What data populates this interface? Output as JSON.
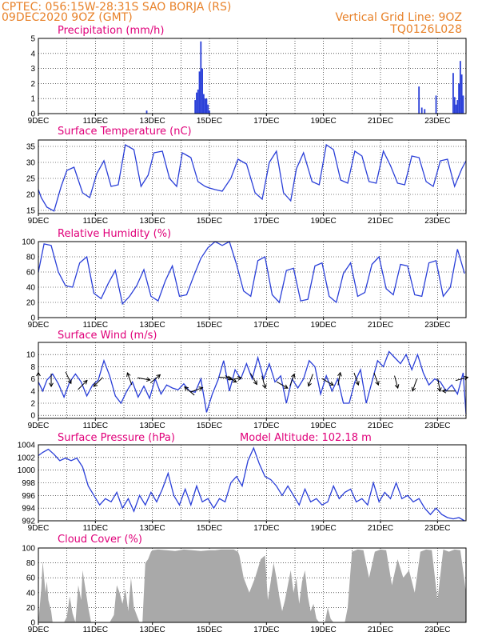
{
  "header": {
    "line1": "CPTEC:   056:15W-28:31S   SAO BORJA (RS)",
    "line2": "09DEC2020 9OZ (GMT)",
    "right1": "Vertical Grid Line: 9OZ",
    "right2": "TQ0126L028",
    "altitude": "Model Altitude: 102.18 m"
  },
  "colors": {
    "header": "#e8822a",
    "panel_title": "#e0007a",
    "series": "#2a3fd8",
    "cloud": "#a9a9a9"
  },
  "x_axis": {
    "start_day": 9,
    "end_day": 24,
    "ticks": [
      {
        "day": 9,
        "label": "9DEC"
      },
      {
        "day": 11,
        "label": "11DEC"
      },
      {
        "day": 13,
        "label": "13DEC"
      },
      {
        "day": 15,
        "label": "15DEC"
      },
      {
        "day": 17,
        "label": "17DEC"
      },
      {
        "day": 19,
        "label": "19DEC"
      },
      {
        "day": 21,
        "label": "21DEC"
      },
      {
        "day": 23,
        "label": "23DEC"
      }
    ]
  },
  "chart_data": [
    {
      "key": "precip",
      "type": "bar",
      "title": "Precipitation (mm/h)",
      "ylim": [
        0,
        5
      ],
      "yticks": [
        0,
        1,
        2,
        3,
        4,
        5
      ],
      "grid": true,
      "x": [
        12.8,
        14.5,
        14.55,
        14.6,
        14.65,
        14.7,
        14.75,
        14.8,
        14.85,
        14.9,
        14.95,
        15.0,
        22.35,
        22.45,
        22.55,
        22.95,
        23.55,
        23.6,
        23.65,
        23.7,
        23.75,
        23.8,
        23.85,
        23.9
      ],
      "values": [
        0.2,
        0.9,
        1.4,
        1.6,
        2.8,
        4.8,
        3.0,
        1.3,
        1.0,
        1.0,
        0.6,
        0.2,
        1.8,
        0.4,
        0.3,
        1.2,
        2.7,
        1.1,
        0.6,
        0.9,
        2.0,
        3.5,
        2.6,
        1.2
      ]
    },
    {
      "key": "temp",
      "type": "line",
      "title": "Surface Temperature (nC)",
      "ylim": [
        14,
        37
      ],
      "yticks": [
        15,
        20,
        25,
        30,
        35
      ],
      "grid": true,
      "x": [
        9.0,
        9.1,
        9.3,
        9.55,
        9.8,
        10.0,
        10.25,
        10.55,
        10.8,
        11.05,
        11.3,
        11.55,
        11.8,
        12.05,
        12.35,
        12.6,
        12.85,
        13.05,
        13.35,
        13.6,
        13.85,
        14.05,
        14.35,
        14.6,
        14.85,
        15.0,
        15.2,
        15.45,
        15.75,
        16.0,
        16.3,
        16.6,
        16.85,
        17.1,
        17.35,
        17.6,
        17.85,
        18.05,
        18.3,
        18.6,
        18.85,
        19.1,
        19.35,
        19.6,
        19.85,
        20.1,
        20.35,
        20.6,
        20.85,
        21.1,
        21.35,
        21.6,
        21.85,
        22.1,
        22.35,
        22.6,
        22.85,
        23.1,
        23.35,
        23.6,
        23.85,
        24.0
      ],
      "values": [
        21.5,
        19,
        16,
        14.8,
        22.5,
        27.5,
        28.5,
        20.5,
        19,
        26.5,
        30.5,
        22.5,
        23,
        35.5,
        34,
        22.5,
        26,
        33,
        33.5,
        25,
        22.5,
        33,
        31.5,
        24,
        22.5,
        22,
        21.5,
        21,
        25,
        31,
        29.5,
        20.5,
        18.5,
        30,
        33.5,
        20.5,
        18,
        28,
        33,
        24,
        23,
        35.5,
        34,
        24.5,
        23.5,
        33.5,
        32,
        24,
        23.5,
        33.5,
        29,
        23.5,
        23,
        32,
        31.5,
        24,
        22.5,
        30.5,
        31,
        22.5,
        28,
        30.5
      ]
    },
    {
      "key": "rh",
      "type": "line",
      "title": "Relative Humidity (%)",
      "ylim": [
        0,
        100
      ],
      "yticks": [
        0,
        20,
        40,
        60,
        80,
        100
      ],
      "grid": true,
      "x": [
        9.0,
        9.2,
        9.45,
        9.7,
        9.95,
        10.2,
        10.45,
        10.7,
        10.95,
        11.2,
        11.45,
        11.7,
        11.95,
        12.2,
        12.45,
        12.7,
        12.95,
        13.2,
        13.45,
        13.7,
        13.95,
        14.2,
        14.45,
        14.7,
        14.95,
        15.2,
        15.45,
        15.7,
        15.95,
        16.2,
        16.45,
        16.7,
        16.95,
        17.2,
        17.45,
        17.7,
        17.95,
        18.2,
        18.45,
        18.7,
        18.95,
        19.2,
        19.45,
        19.7,
        19.95,
        20.2,
        20.45,
        20.7,
        20.95,
        21.2,
        21.45,
        21.7,
        21.95,
        22.2,
        22.45,
        22.7,
        22.95,
        23.2,
        23.45,
        23.7,
        23.95
      ],
      "values": [
        60,
        97,
        95,
        60,
        42,
        40,
        72,
        80,
        32,
        25,
        45,
        62,
        18,
        28,
        42,
        63,
        28,
        22,
        48,
        68,
        28,
        30,
        55,
        78,
        92,
        100,
        95,
        100,
        70,
        35,
        28,
        75,
        80,
        30,
        20,
        62,
        65,
        22,
        24,
        68,
        72,
        28,
        20,
        58,
        72,
        28,
        33,
        70,
        80,
        38,
        30,
        70,
        68,
        30,
        28,
        72,
        75,
        28,
        40,
        90,
        58
      ]
    },
    {
      "key": "wind",
      "type": "line",
      "title": "Surface Wind (m/s)",
      "ylim": [
        -0.5,
        12
      ],
      "yticks": [
        0,
        2,
        4,
        6,
        8,
        10
      ],
      "grid": true,
      "x": [
        9.0,
        9.15,
        9.3,
        9.5,
        9.7,
        9.9,
        10.1,
        10.3,
        10.5,
        10.7,
        10.9,
        11.1,
        11.3,
        11.5,
        11.7,
        11.9,
        12.1,
        12.3,
        12.5,
        12.7,
        12.9,
        13.1,
        13.3,
        13.5,
        13.7,
        13.9,
        14.1,
        14.3,
        14.5,
        14.7,
        14.9,
        15.1,
        15.3,
        15.5,
        15.7,
        15.9,
        16.1,
        16.3,
        16.5,
        16.7,
        16.9,
        17.1,
        17.3,
        17.5,
        17.7,
        17.9,
        18.1,
        18.3,
        18.5,
        18.7,
        18.9,
        19.1,
        19.3,
        19.5,
        19.7,
        19.9,
        20.1,
        20.3,
        20.5,
        20.7,
        20.9,
        21.1,
        21.3,
        21.5,
        21.7,
        21.9,
        22.1,
        22.3,
        22.5,
        22.7,
        22.9,
        23.1,
        23.3,
        23.5,
        23.7,
        23.9,
        24.0
      ],
      "values": [
        5.5,
        4.0,
        5.8,
        6.8,
        5.2,
        3.0,
        5.5,
        6.8,
        5.5,
        3.2,
        5.0,
        5.8,
        9.0,
        6.5,
        3.2,
        2.0,
        4.0,
        5.5,
        3.0,
        4.8,
        2.8,
        6.0,
        3.5,
        5.0,
        4.5,
        4.2,
        5.2,
        4.0,
        3.8,
        6.0,
        0.5,
        3.5,
        5.8,
        9.0,
        4.0,
        7.5,
        6.0,
        8.5,
        6.0,
        9.5,
        6.0,
        8.5,
        5.5,
        6.5,
        2.0,
        6.0,
        4.5,
        6.0,
        9.0,
        8.0,
        3.5,
        6.5,
        4.0,
        6.0,
        2.0,
        2.0,
        5.5,
        7.5,
        2.0,
        5.5,
        9.0,
        8.0,
        10.5,
        9.5,
        8.5,
        10.0,
        7.5,
        10.0,
        7.0,
        5.0,
        6.0,
        5.5,
        4.0,
        5.0,
        3.5,
        7.0,
        0.2
      ]
    },
    {
      "key": "press",
      "type": "line",
      "title": "Surface Pressure (hPa)",
      "ylim": [
        992,
        1004
      ],
      "yticks": [
        992,
        994,
        996,
        998,
        1000,
        1002,
        1004
      ],
      "grid": true,
      "x": [
        9.0,
        9.15,
        9.35,
        9.55,
        9.75,
        9.95,
        10.15,
        10.35,
        10.55,
        10.75,
        10.95,
        11.15,
        11.35,
        11.55,
        11.75,
        11.95,
        12.15,
        12.35,
        12.55,
        12.75,
        12.95,
        13.15,
        13.35,
        13.55,
        13.75,
        13.95,
        14.15,
        14.35,
        14.55,
        14.75,
        14.95,
        15.15,
        15.35,
        15.55,
        15.75,
        15.95,
        16.15,
        16.35,
        16.55,
        16.75,
        16.95,
        17.15,
        17.35,
        17.55,
        17.75,
        17.95,
        18.15,
        18.35,
        18.55,
        18.75,
        18.95,
        19.15,
        19.35,
        19.55,
        19.75,
        19.95,
        20.15,
        20.35,
        20.55,
        20.75,
        20.95,
        21.15,
        21.35,
        21.55,
        21.75,
        21.95,
        22.15,
        22.35,
        22.55,
        22.75,
        22.95,
        23.15,
        23.35,
        23.55,
        23.75,
        23.95
      ],
      "values": [
        1002.3,
        1002.8,
        1003.3,
        1002.5,
        1001.5,
        1001.9,
        1001.5,
        1001.9,
        1000.5,
        997.5,
        996.0,
        994.5,
        995.5,
        995.0,
        996.5,
        994.0,
        995.5,
        993.5,
        996.0,
        994.5,
        996.5,
        995.0,
        997.0,
        999.5,
        996.0,
        994.5,
        997.0,
        994.5,
        997.5,
        995.0,
        995.5,
        994.0,
        995.5,
        995.0,
        998.0,
        999.0,
        997.5,
        1001.5,
        1003.5,
        1001.0,
        999.0,
        998.5,
        997.5,
        996.0,
        997.5,
        996.0,
        994.5,
        997.0,
        995.0,
        995.5,
        994.5,
        995.0,
        997.5,
        995.5,
        996.5,
        997.0,
        995.0,
        995.5,
        994.5,
        998.0,
        995.0,
        996.5,
        995.5,
        998.0,
        995.5,
        996.0,
        995.0,
        995.5,
        994.0,
        993.0,
        994.0,
        993.0,
        992.5,
        992.3,
        992.5,
        992.0
      ]
    },
    {
      "key": "cloud",
      "type": "area",
      "title": "Cloud Cover (%)",
      "ylim": [
        0,
        100
      ],
      "yticks": [
        0,
        20,
        40,
        60,
        80,
        100
      ],
      "grid": true,
      "x": [
        9.0,
        9.1,
        9.15,
        9.25,
        9.3,
        9.35,
        9.45,
        9.5,
        9.6,
        9.7,
        9.8,
        9.9,
        10.0,
        10.1,
        10.2,
        10.3,
        10.4,
        10.5,
        10.55,
        10.65,
        10.75,
        10.85,
        10.95,
        11.05,
        11.2,
        11.4,
        11.5,
        11.65,
        11.75,
        11.85,
        11.95,
        12.05,
        12.15,
        12.25,
        12.35,
        12.45,
        12.55,
        12.65,
        12.75,
        12.85,
        12.95,
        13.0,
        13.2,
        13.5,
        13.8,
        14.1,
        14.4,
        14.7,
        15.0,
        15.2,
        15.4,
        15.55,
        15.7,
        15.85,
        16.0,
        16.05,
        16.2,
        16.4,
        16.6,
        16.8,
        16.95,
        17.05,
        17.15,
        17.25,
        17.35,
        17.45,
        17.55,
        17.65,
        17.75,
        17.85,
        17.95,
        18.05,
        18.15,
        18.25,
        18.35,
        18.45,
        18.55,
        18.65,
        18.75,
        18.85,
        18.95,
        19.05,
        19.15,
        19.25,
        19.35,
        19.45,
        19.55,
        19.65,
        19.75,
        19.85,
        20.0,
        20.2,
        20.4,
        20.6,
        20.8,
        21.0,
        21.2,
        21.4,
        21.6,
        21.8,
        22.0,
        22.2,
        22.4,
        22.6,
        22.8,
        23.0,
        23.2,
        23.4,
        23.6,
        23.8,
        24.0
      ],
      "values": [
        0,
        45,
        82,
        40,
        55,
        30,
        15,
        0,
        0,
        0,
        0,
        0,
        8,
        35,
        12,
        0,
        50,
        30,
        70,
        45,
        20,
        0,
        0,
        0,
        0,
        0,
        0,
        10,
        50,
        40,
        25,
        45,
        15,
        60,
        20,
        10,
        0,
        0,
        80,
        85,
        95,
        97,
        98,
        97,
        96,
        98,
        97,
        96,
        97,
        97,
        98,
        98,
        98,
        98,
        95,
        90,
        60,
        40,
        60,
        85,
        90,
        30,
        55,
        80,
        60,
        35,
        15,
        30,
        50,
        70,
        40,
        60,
        25,
        55,
        70,
        35,
        15,
        25,
        5,
        0,
        0,
        0,
        20,
        5,
        0,
        0,
        0,
        0,
        0,
        20,
        95,
        98,
        97,
        60,
        95,
        98,
        97,
        50,
        85,
        60,
        70,
        40,
        95,
        98,
        97,
        30,
        98,
        95,
        98,
        97,
        40
      ]
    }
  ],
  "wind_arrows": [
    {
      "x": 9.0,
      "y": 6.0,
      "dir": 90
    },
    {
      "x": 9.45,
      "y": 5.8,
      "dir": 270
    },
    {
      "x": 10.05,
      "y": 6.2,
      "dir": 295
    },
    {
      "x": 10.55,
      "y": 5.0,
      "dir": 45
    },
    {
      "x": 11.1,
      "y": 5.5,
      "dir": 225
    },
    {
      "x": 12.2,
      "y": 6.0,
      "dir": 110
    },
    {
      "x": 12.7,
      "y": 6.0,
      "dir": 350
    },
    {
      "x": 13.1,
      "y": 6.0,
      "dir": 40
    },
    {
      "x": 14.3,
      "y": 4.0,
      "dir": 140
    },
    {
      "x": 14.55,
      "y": 4.2,
      "dir": 20
    },
    {
      "x": 15.55,
      "y": 6.2,
      "dir": 355
    },
    {
      "x": 15.75,
      "y": 6.0,
      "dir": 330
    },
    {
      "x": 15.9,
      "y": 6.0,
      "dir": 10
    },
    {
      "x": 16.55,
      "y": 6.0,
      "dir": 300
    },
    {
      "x": 16.9,
      "y": 5.5,
      "dir": 285
    },
    {
      "x": 17.55,
      "y": 5.0,
      "dir": 330
    },
    {
      "x": 17.9,
      "y": 5.8,
      "dir": 70
    },
    {
      "x": 18.55,
      "y": 5.8,
      "dir": 250
    },
    {
      "x": 19.15,
      "y": 5.5,
      "dir": 330
    },
    {
      "x": 19.55,
      "y": 6.0,
      "dir": 80
    },
    {
      "x": 20.15,
      "y": 6.0,
      "dir": 290
    },
    {
      "x": 20.85,
      "y": 6.0,
      "dir": 290
    },
    {
      "x": 21.55,
      "y": 5.5,
      "dir": 285
    },
    {
      "x": 22.2,
      "y": 5.0,
      "dir": 250
    },
    {
      "x": 23.05,
      "y": 5.0,
      "dir": 280
    },
    {
      "x": 23.4,
      "y": 4.0,
      "dir": 180
    },
    {
      "x": 23.85,
      "y": 6.0,
      "dir": 15
    }
  ]
}
